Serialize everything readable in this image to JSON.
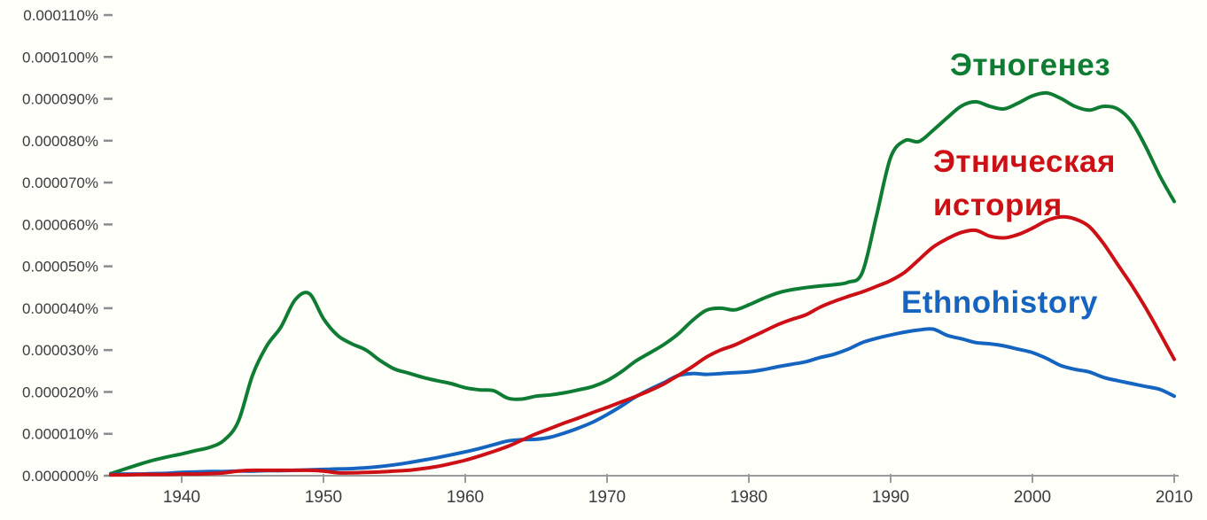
{
  "colors": {
    "background": "#fffffa",
    "axis_line": "#9b9b9b",
    "tick_text": "#3e3a3e",
    "series_green": "#0e7d33",
    "series_red": "#cc1016",
    "series_blue": "#1565c0"
  },
  "chart_data": {
    "type": "line",
    "title": "",
    "xlabel": "",
    "ylabel": "",
    "grid": false,
    "legend_position": "labels-near-lines-right",
    "x_axis": {
      "range": [
        1935,
        2010
      ],
      "ticks": [
        1940,
        1950,
        1960,
        1970,
        1980,
        1990,
        2000,
        2010
      ]
    },
    "y_axis": {
      "range_e6_percent": [
        0,
        116
      ],
      "tick_values_e6_percent": [
        0,
        10,
        20,
        30,
        40,
        50,
        60,
        70,
        80,
        90,
        100,
        110
      ],
      "tick_labels": [
        "0.000000%",
        "0.000010%",
        "0.000020%",
        "0.000030%",
        "0.000040%",
        "0.000050%",
        "0.000060%",
        "0.000070%",
        "0.000080%",
        "0.000090%",
        "0.000100%",
        "0.000110%"
      ]
    },
    "y_value_unit": "1e-6 percent (0.000001%)",
    "series": [
      {
        "name": "Этногенез",
        "label_lines": [
          "Этногенез"
        ],
        "color": "#0e7d33",
        "points": [
          [
            1935,
            0.5
          ],
          [
            1936,
            1.6
          ],
          [
            1937,
            2.7
          ],
          [
            1938,
            3.7
          ],
          [
            1939,
            4.5
          ],
          [
            1940,
            5.2
          ],
          [
            1941,
            6.0
          ],
          [
            1942,
            6.8
          ],
          [
            1943,
            8.5
          ],
          [
            1944,
            13
          ],
          [
            1945,
            24
          ],
          [
            1946,
            31
          ],
          [
            1947,
            35.5
          ],
          [
            1948,
            42
          ],
          [
            1949,
            43.5
          ],
          [
            1950,
            37.5
          ],
          [
            1951,
            33.5
          ],
          [
            1952,
            31.5
          ],
          [
            1953,
            30
          ],
          [
            1954,
            27.5
          ],
          [
            1955,
            25.5
          ],
          [
            1956,
            24.5
          ],
          [
            1957,
            23.5
          ],
          [
            1958,
            22.7
          ],
          [
            1959,
            22
          ],
          [
            1960,
            21
          ],
          [
            1961,
            20.5
          ],
          [
            1962,
            20.3
          ],
          [
            1963,
            18.5
          ],
          [
            1964,
            18.3
          ],
          [
            1965,
            19
          ],
          [
            1966,
            19.3
          ],
          [
            1967,
            19.8
          ],
          [
            1968,
            20.5
          ],
          [
            1969,
            21.3
          ],
          [
            1970,
            22.7
          ],
          [
            1971,
            24.8
          ],
          [
            1972,
            27.3
          ],
          [
            1973,
            29.3
          ],
          [
            1974,
            31.3
          ],
          [
            1975,
            33.8
          ],
          [
            1976,
            37
          ],
          [
            1977,
            39.5
          ],
          [
            1978,
            40
          ],
          [
            1979,
            39.6
          ],
          [
            1980,
            40.8
          ],
          [
            1981,
            42.3
          ],
          [
            1982,
            43.6
          ],
          [
            1983,
            44.4
          ],
          [
            1984,
            44.9
          ],
          [
            1985,
            45.3
          ],
          [
            1986,
            45.6
          ],
          [
            1987,
            46.2
          ],
          [
            1988,
            48.5
          ],
          [
            1989,
            62
          ],
          [
            1990,
            76
          ],
          [
            1991,
            80
          ],
          [
            1992,
            79.8
          ],
          [
            1993,
            82.5
          ],
          [
            1994,
            85.5
          ],
          [
            1995,
            88.3
          ],
          [
            1996,
            89.3
          ],
          [
            1997,
            88.2
          ],
          [
            1998,
            87.6
          ],
          [
            1999,
            89
          ],
          [
            2000,
            90.7
          ],
          [
            2001,
            91.4
          ],
          [
            2002,
            90.1
          ],
          [
            2003,
            88.2
          ],
          [
            2004,
            87.3
          ],
          [
            2005,
            88.2
          ],
          [
            2006,
            87.6
          ],
          [
            2007,
            84.5
          ],
          [
            2008,
            78.5
          ],
          [
            2009,
            71.5
          ],
          [
            2010,
            65.5
          ]
        ]
      },
      {
        "name": "Этническая история",
        "label_lines": [
          "Этническая",
          "история"
        ],
        "color": "#cc1016",
        "points": [
          [
            1935,
            0.2
          ],
          [
            1936,
            0.2
          ],
          [
            1937,
            0.3
          ],
          [
            1938,
            0.3
          ],
          [
            1939,
            0.3
          ],
          [
            1940,
            0.4
          ],
          [
            1941,
            0.4
          ],
          [
            1942,
            0.5
          ],
          [
            1943,
            0.7
          ],
          [
            1944,
            1.1
          ],
          [
            1945,
            1.3
          ],
          [
            1946,
            1.3
          ],
          [
            1947,
            1.3
          ],
          [
            1948,
            1.3
          ],
          [
            1949,
            1.3
          ],
          [
            1950,
            1.1
          ],
          [
            1951,
            0.7
          ],
          [
            1952,
            0.7
          ],
          [
            1953,
            0.8
          ],
          [
            1954,
            0.9
          ],
          [
            1955,
            1.1
          ],
          [
            1956,
            1.3
          ],
          [
            1957,
            1.7
          ],
          [
            1958,
            2.2
          ],
          [
            1959,
            2.9
          ],
          [
            1960,
            3.7
          ],
          [
            1961,
            4.7
          ],
          [
            1962,
            5.8
          ],
          [
            1963,
            7
          ],
          [
            1964,
            8.5
          ],
          [
            1965,
            10
          ],
          [
            1966,
            11.3
          ],
          [
            1967,
            12.6
          ],
          [
            1968,
            13.8
          ],
          [
            1969,
            15.1
          ],
          [
            1970,
            16.3
          ],
          [
            1971,
            17.6
          ],
          [
            1972,
            18.9
          ],
          [
            1973,
            20.3
          ],
          [
            1974,
            21.9
          ],
          [
            1975,
            23.9
          ],
          [
            1976,
            26
          ],
          [
            1977,
            28.3
          ],
          [
            1978,
            30
          ],
          [
            1979,
            31.2
          ],
          [
            1980,
            32.8
          ],
          [
            1981,
            34.4
          ],
          [
            1982,
            36
          ],
          [
            1983,
            37.3
          ],
          [
            1984,
            38.4
          ],
          [
            1985,
            40.2
          ],
          [
            1986,
            41.6
          ],
          [
            1987,
            42.8
          ],
          [
            1988,
            43.9
          ],
          [
            1989,
            45.2
          ],
          [
            1990,
            46.6
          ],
          [
            1991,
            48.6
          ],
          [
            1992,
            51.6
          ],
          [
            1993,
            54.6
          ],
          [
            1994,
            56.6
          ],
          [
            1995,
            58.1
          ],
          [
            1996,
            58.6
          ],
          [
            1997,
            57.2
          ],
          [
            1998,
            56.8
          ],
          [
            1999,
            57.6
          ],
          [
            2000,
            59.1
          ],
          [
            2001,
            60.9
          ],
          [
            2002,
            61.8
          ],
          [
            2003,
            61.3
          ],
          [
            2004,
            59.5
          ],
          [
            2005,
            55.5
          ],
          [
            2006,
            50.5
          ],
          [
            2007,
            45.5
          ],
          [
            2008,
            40
          ],
          [
            2009,
            34
          ],
          [
            2010,
            27.8
          ]
        ]
      },
      {
        "name": "Ethnohistory",
        "label_lines": [
          "Ethnohistory"
        ],
        "color": "#1565c0",
        "points": [
          [
            1935,
            0.3
          ],
          [
            1936,
            0.4
          ],
          [
            1937,
            0.4
          ],
          [
            1938,
            0.5
          ],
          [
            1939,
            0.6
          ],
          [
            1940,
            0.8
          ],
          [
            1941,
            0.9
          ],
          [
            1942,
            1.0
          ],
          [
            1943,
            1.0
          ],
          [
            1944,
            1.1
          ],
          [
            1945,
            1.1
          ],
          [
            1946,
            1.2
          ],
          [
            1947,
            1.2
          ],
          [
            1948,
            1.3
          ],
          [
            1949,
            1.4
          ],
          [
            1950,
            1.5
          ],
          [
            1951,
            1.6
          ],
          [
            1952,
            1.7
          ],
          [
            1953,
            1.9
          ],
          [
            1954,
            2.2
          ],
          [
            1955,
            2.6
          ],
          [
            1956,
            3.1
          ],
          [
            1957,
            3.7
          ],
          [
            1958,
            4.3
          ],
          [
            1959,
            5.0
          ],
          [
            1960,
            5.7
          ],
          [
            1961,
            6.5
          ],
          [
            1962,
            7.4
          ],
          [
            1963,
            8.3
          ],
          [
            1964,
            8.6
          ],
          [
            1965,
            8.7
          ],
          [
            1966,
            9.2
          ],
          [
            1967,
            10.2
          ],
          [
            1968,
            11.4
          ],
          [
            1969,
            12.8
          ],
          [
            1970,
            14.6
          ],
          [
            1971,
            16.6
          ],
          [
            1972,
            18.8
          ],
          [
            1973,
            20.6
          ],
          [
            1974,
            22.2
          ],
          [
            1975,
            23.9
          ],
          [
            1976,
            24.4
          ],
          [
            1977,
            24.2
          ],
          [
            1978,
            24.4
          ],
          [
            1979,
            24.6
          ],
          [
            1980,
            24.8
          ],
          [
            1981,
            25.3
          ],
          [
            1982,
            26
          ],
          [
            1983,
            26.6
          ],
          [
            1984,
            27.2
          ],
          [
            1985,
            28.2
          ],
          [
            1986,
            29
          ],
          [
            1987,
            30.2
          ],
          [
            1988,
            31.8
          ],
          [
            1989,
            32.8
          ],
          [
            1990,
            33.6
          ],
          [
            1991,
            34.3
          ],
          [
            1992,
            34.8
          ],
          [
            1993,
            35
          ],
          [
            1994,
            33.5
          ],
          [
            1995,
            32.7
          ],
          [
            1996,
            31.8
          ],
          [
            1997,
            31.5
          ],
          [
            1998,
            31
          ],
          [
            1999,
            30.2
          ],
          [
            2000,
            29.4
          ],
          [
            2001,
            28
          ],
          [
            2002,
            26.3
          ],
          [
            2003,
            25.4
          ],
          [
            2004,
            24.8
          ],
          [
            2005,
            23.5
          ],
          [
            2006,
            22.7
          ],
          [
            2007,
            22
          ],
          [
            2008,
            21.3
          ],
          [
            2009,
            20.6
          ],
          [
            2010,
            19
          ]
        ]
      }
    ]
  }
}
